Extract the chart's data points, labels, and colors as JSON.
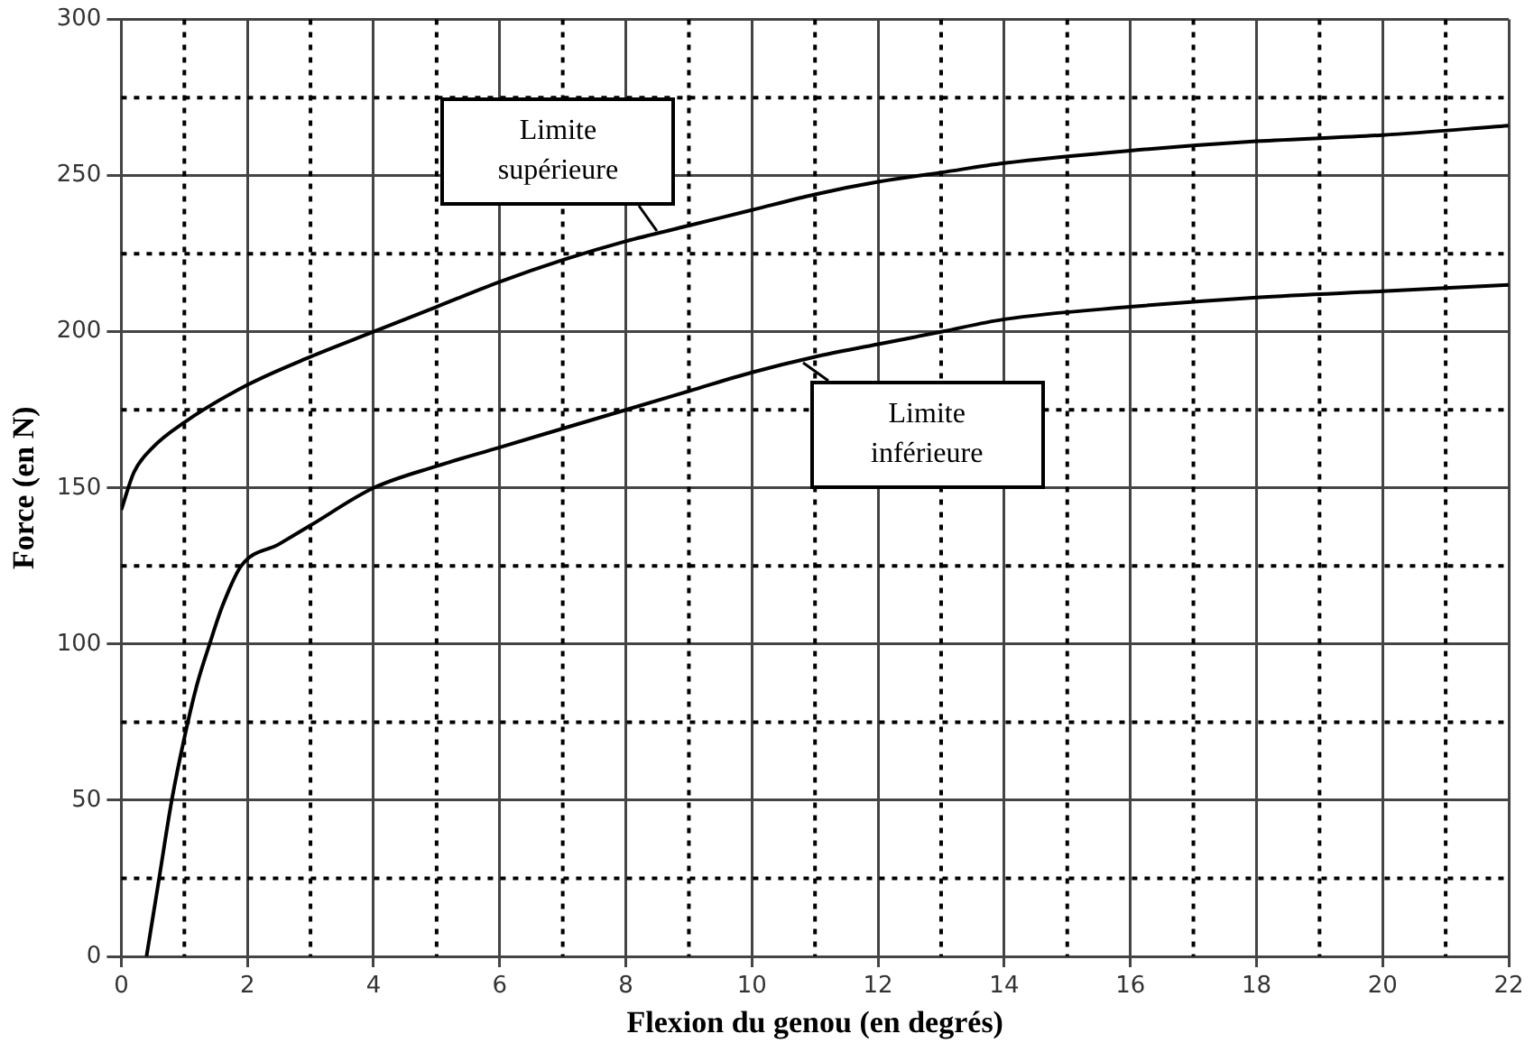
{
  "chart_data": {
    "type": "line",
    "xlabel": "Flexion du genou (en degrés)",
    "ylabel": "Force (en N)",
    "xlim": [
      0,
      22
    ],
    "xticks": [
      0,
      2,
      4,
      6,
      8,
      10,
      12,
      14,
      16,
      18,
      20,
      22
    ],
    "ylim": [
      0,
      300
    ],
    "yticks": [
      0,
      50,
      100,
      150,
      200,
      250,
      300
    ],
    "grid": true,
    "legend": false,
    "marker": "none",
    "line_style": "solid",
    "series": [
      {
        "color": "#000000",
        "x": [
          0,
          0.2,
          0.5,
          1,
          2,
          3,
          4,
          5,
          6,
          7,
          8,
          9,
          10,
          11,
          12,
          13,
          14,
          16,
          18,
          20,
          22
        ],
        "values": [
          143,
          155,
          163,
          171,
          183,
          192,
          200,
          208,
          216,
          223,
          229,
          234,
          239,
          244,
          248,
          251,
          254,
          258,
          261,
          263,
          266
        ]
      },
      {
        "color": "#000000",
        "x": [
          0.4,
          0.6,
          0.8,
          1,
          1.2,
          1.4,
          1.6,
          1.9,
          2.5,
          3,
          4,
          5,
          6,
          7,
          8,
          9,
          10,
          11,
          12,
          13,
          14,
          16,
          18,
          20,
          22
        ],
        "values": [
          0,
          25,
          50,
          70,
          87,
          100,
          112,
          125,
          132,
          138,
          150,
          157,
          163,
          169,
          175,
          181,
          187,
          192,
          196,
          200,
          204,
          208,
          211,
          213,
          215
        ]
      }
    ],
    "annotations": [
      {
        "text": "Limite supérieure",
        "x": 8.5,
        "y": 232
      },
      {
        "text": "Limite inférieure",
        "x": 10.8,
        "y": 190
      }
    ]
  }
}
